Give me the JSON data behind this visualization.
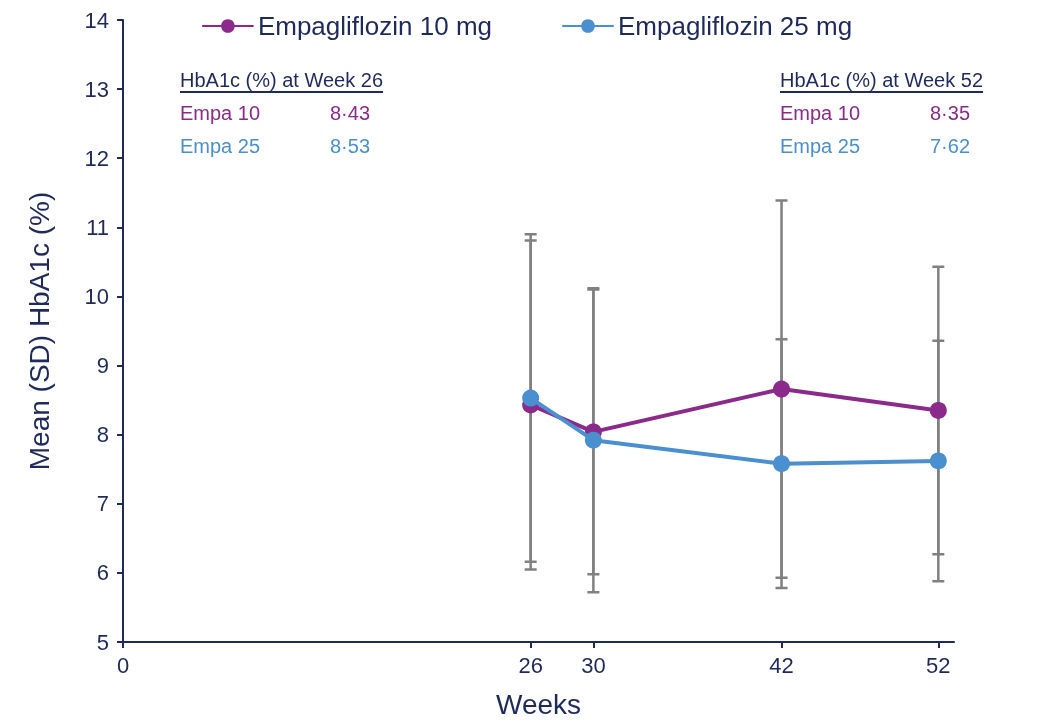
{
  "chart_data": {
    "type": "line",
    "xlabel": "Weeks",
    "ylabel": "Mean (SD) HbA1c (%)",
    "x": [
      26,
      30,
      42,
      52
    ],
    "series": [
      {
        "name": "Empagliflozin 10 mg",
        "color": "#8b2a8b",
        "values": [
          8.43,
          8.04,
          8.66,
          8.35
        ],
        "errors": [
          2.38,
          2.06,
          2.73,
          2.08
        ]
      },
      {
        "name": "Empagliflozin 25 mg",
        "color": "#4a90d0",
        "values": [
          8.53,
          7.92,
          7.58,
          7.62
        ],
        "errors": [
          2.37,
          2.2,
          1.8,
          1.74
        ]
      }
    ],
    "xlim": [
      0,
      53
    ],
    "xticks": [
      0,
      26,
      30,
      42,
      52
    ],
    "ylim": [
      5,
      14
    ],
    "yticks": [
      5,
      6,
      7,
      8,
      9,
      10,
      11,
      12,
      13,
      14
    ],
    "annotations": [
      "HbA1c (%) at Week 26",
      "Empa 10",
      "8·43",
      "Empa 25",
      "8·53",
      "HbA1c (%) at Week 52",
      "Empa 10",
      "8·35",
      "Empa 25",
      "7·62"
    ],
    "legend": "top",
    "marker": "circle",
    "line_style": "solid",
    "grid": false
  }
}
